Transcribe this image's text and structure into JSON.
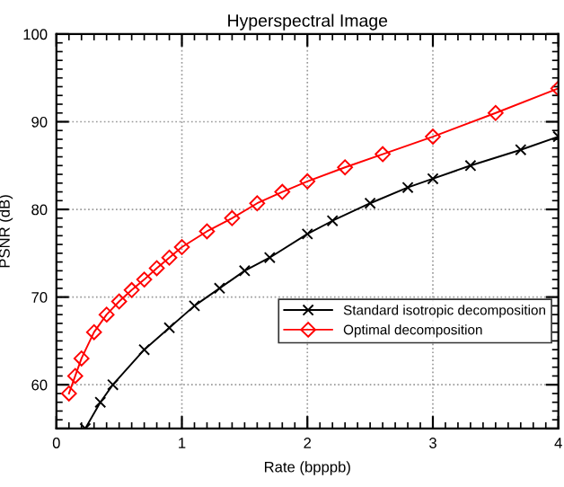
{
  "chart_data": {
    "type": "line",
    "title": "Hyperspectral Image",
    "xlabel": "Rate (bpppb)",
    "ylabel": "PSNR (dB)",
    "xlim": [
      0,
      4
    ],
    "ylim": [
      55,
      100
    ],
    "xticks": [
      0,
      1,
      2,
      3,
      4
    ],
    "yticks": [
      {
        "value": 55,
        "label": null
      },
      60,
      70,
      80,
      90,
      100
    ],
    "grid": true,
    "legend": "bottom right",
    "series": [
      {
        "name": "Standard isotropic decomposition",
        "color": "#000000",
        "marker": "cross",
        "x": [
          0.23,
          0.35,
          0.45,
          0.7,
          0.9,
          1.1,
          1.3,
          1.5,
          1.7,
          2.0,
          2.2,
          2.5,
          2.8,
          3.0,
          3.3,
          3.7,
          4.0
        ],
        "values": [
          55,
          58,
          60,
          64,
          66.5,
          69,
          71,
          73,
          74.5,
          77.2,
          78.7,
          80.7,
          82.5,
          83.5,
          85,
          86.8,
          88.3
        ]
      },
      {
        "name": "Optimal decomposition",
        "color": "#ff0000",
        "marker": "diamond",
        "x": [
          0.1,
          0.15,
          0.2,
          0.3,
          0.4,
          0.5,
          0.6,
          0.7,
          0.8,
          0.9,
          1.0,
          1.2,
          1.4,
          1.6,
          1.8,
          2.0,
          2.3,
          2.6,
          3.0,
          3.5,
          4.0
        ],
        "values": [
          59,
          61,
          63,
          66,
          68,
          69.5,
          70.8,
          72,
          73.3,
          74.5,
          75.7,
          77.5,
          79,
          80.7,
          82,
          83.2,
          84.8,
          86.3,
          88.3,
          91,
          93.8
        ]
      }
    ]
  }
}
